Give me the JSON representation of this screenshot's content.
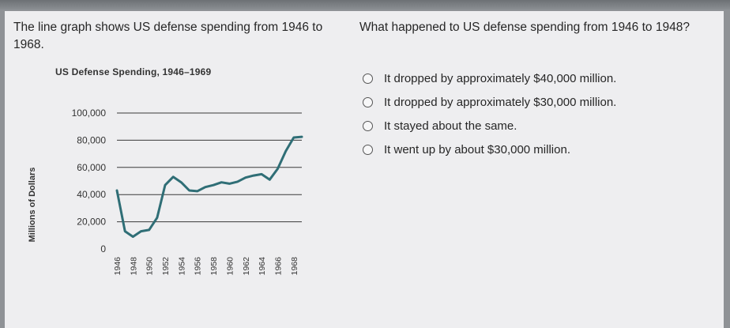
{
  "stem": "The line graph shows US defense spending from 1946 to 1968.",
  "question": "What happened to US defense spending from 1946 to 1948?",
  "choices": [
    {
      "label": "It dropped by approximately $40,000 million."
    },
    {
      "label": "It dropped by approximately $30,000 million."
    },
    {
      "label": "It stayed about the same."
    },
    {
      "label": "It went up by about $30,000 million."
    }
  ],
  "colors": {
    "line": "#2f6e76",
    "background": "#eeeef0"
  },
  "chart_data": {
    "type": "line",
    "title": "US Defense Spending, 1946–1969",
    "ylabel": "Millions of Dollars",
    "xlabel": "",
    "ylim": [
      0,
      100000
    ],
    "xlim": [
      1946,
      1969
    ],
    "yticks": [
      0,
      20000,
      40000,
      60000,
      80000,
      100000
    ],
    "ytick_labels": [
      "0",
      "20,000",
      "40,000",
      "60,000",
      "80,000",
      "100,000"
    ],
    "xticks": [
      1946,
      1948,
      1950,
      1952,
      1954,
      1956,
      1958,
      1960,
      1962,
      1964,
      1966,
      1968
    ],
    "xtick_labels": [
      "1946",
      "1948",
      "1950",
      "1952",
      "1954",
      "1956",
      "1958",
      "1960",
      "1962",
      "1964",
      "1966",
      "1968"
    ],
    "grid": "horizontal",
    "series": [
      {
        "x": [
          1946,
          1947,
          1948,
          1949,
          1950,
          1951,
          1952,
          1953,
          1954,
          1955,
          1956,
          1957,
          1958,
          1959,
          1960,
          1961,
          1962,
          1963,
          1964,
          1965,
          1966,
          1967,
          1968,
          1969
        ],
        "values": [
          43000,
          13000,
          9000,
          13000,
          14000,
          23000,
          47000,
          53000,
          49000,
          43000,
          42500,
          45500,
          47000,
          49000,
          48000,
          49500,
          52500,
          54000,
          55000,
          51000,
          59000,
          72000,
          82000,
          82500
        ]
      }
    ]
  }
}
